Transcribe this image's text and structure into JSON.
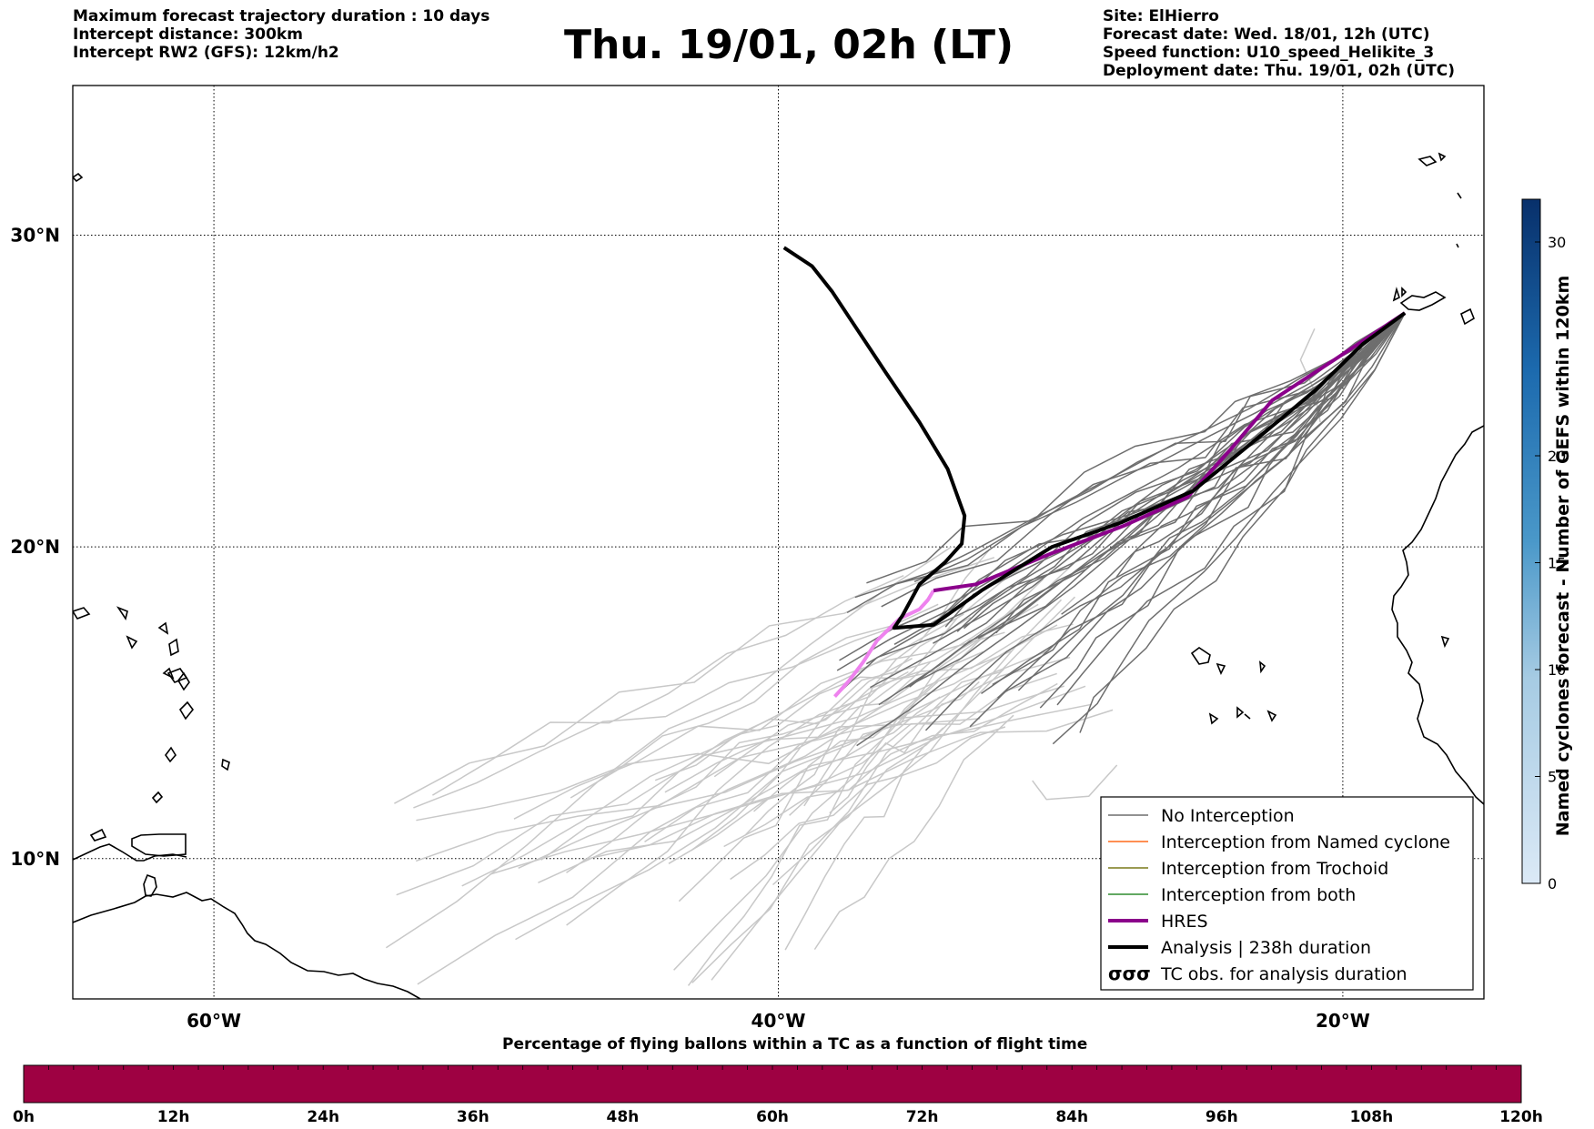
{
  "header": {
    "left_lines": [
      "Maximum forecast trajectory duration : 10 days",
      "Intercept distance: 300km",
      "Intercept RW2 (GFS):  12km/h2"
    ],
    "title": "Thu. 19/01, 02h (LT)",
    "right_lines": [
      "Site: ElHierro",
      "Forecast date: Wed. 18/01, 12h (UTC)",
      "Speed function: U10_speed_Helikite_3",
      "Deployment date: Thu. 19/01, 02h (UTC)"
    ]
  },
  "map": {
    "lat_range": [
      5.5,
      34.8
    ],
    "lon_range": [
      -65,
      -15
    ],
    "lat_labels": [
      "30°N",
      "20°N",
      "10°N"
    ],
    "lon_labels": [
      "60°W",
      "40°W",
      "20°W"
    ],
    "gridlines": "dotted",
    "colors": {
      "analysis": "#000000",
      "hres_purple": "#8b008b",
      "hres_pink": "#ee82ee",
      "ens_dark": "#6e6e6e",
      "ens_light": "#c8c8c8",
      "named_cyclone": "#ff6a1a",
      "trochoid": "#7a7a1a",
      "both": "#2e8b2e"
    },
    "analysis_track": [
      [
        -17.8,
        27.5
      ],
      [
        -19.3,
        26.5
      ],
      [
        -21,
        25
      ],
      [
        -23,
        23.5
      ],
      [
        -25.3,
        21.8
      ],
      [
        -27.8,
        20.8
      ],
      [
        -30.3,
        20.0
      ],
      [
        -32.8,
        18.6
      ],
      [
        -34.5,
        17.5
      ],
      [
        -35.9,
        17.4
      ],
      [
        -35.6,
        17.8
      ],
      [
        -35,
        18.8
      ],
      [
        -34.1,
        19.5
      ],
      [
        -33.5,
        20.1
      ],
      [
        -33.4,
        21
      ],
      [
        -34,
        22.5
      ],
      [
        -35,
        24
      ],
      [
        -36.2,
        25.6
      ],
      [
        -37.3,
        27.1
      ],
      [
        -38.1,
        28.2
      ],
      [
        -38.8,
        29.0
      ],
      [
        -39.8,
        29.6
      ]
    ],
    "hres_track": [
      [
        -17.8,
        27.5
      ],
      [
        -20.3,
        26.0
      ],
      [
        -22.5,
        24.7
      ],
      [
        -24.0,
        23.1
      ],
      [
        -25.5,
        21.6
      ],
      [
        -27.7,
        20.7
      ],
      [
        -30.3,
        19.8
      ],
      [
        -33.0,
        18.8
      ],
      [
        -34.5,
        18.6
      ]
    ],
    "hres_light_track": [
      [
        -34.5,
        18.6
      ],
      [
        -34.7,
        18.3
      ],
      [
        -35,
        18.0
      ],
      [
        -35.7,
        17.7
      ],
      [
        -36.5,
        17.0
      ],
      [
        -37,
        16.3
      ],
      [
        -37.5,
        15.7
      ],
      [
        -38.0,
        15.2
      ]
    ],
    "legend": [
      {
        "label": "No Interception",
        "style": "thin-gray"
      },
      {
        "label": "Interception from Named cyclone",
        "style": "thin-orange"
      },
      {
        "label": "Interception from Trochoid",
        "style": "thin-olive"
      },
      {
        "label": "Interception from both",
        "style": "thin-green"
      },
      {
        "label": "HRES",
        "style": "thick-purple"
      },
      {
        "label": "Analysis | 238h duration",
        "style": "thick-black"
      },
      {
        "label": "TC obs. for analysis duration",
        "style": "cyclone-symbols"
      }
    ]
  },
  "colorbar_right": {
    "label": "Named cyclones forecast - Number of GEFS within 120km",
    "ticks": [
      "0",
      "5",
      "10",
      "15",
      "20",
      "30"
    ]
  },
  "colorbar_bottom": {
    "title": "Percentage of flying ballons within a TC as a function of flight time",
    "ticks": [
      "0h",
      "12h",
      "24h",
      "36h",
      "48h",
      "60h",
      "72h",
      "84h",
      "96h",
      "108h",
      "120h"
    ],
    "fill_color": "#9e0142"
  }
}
